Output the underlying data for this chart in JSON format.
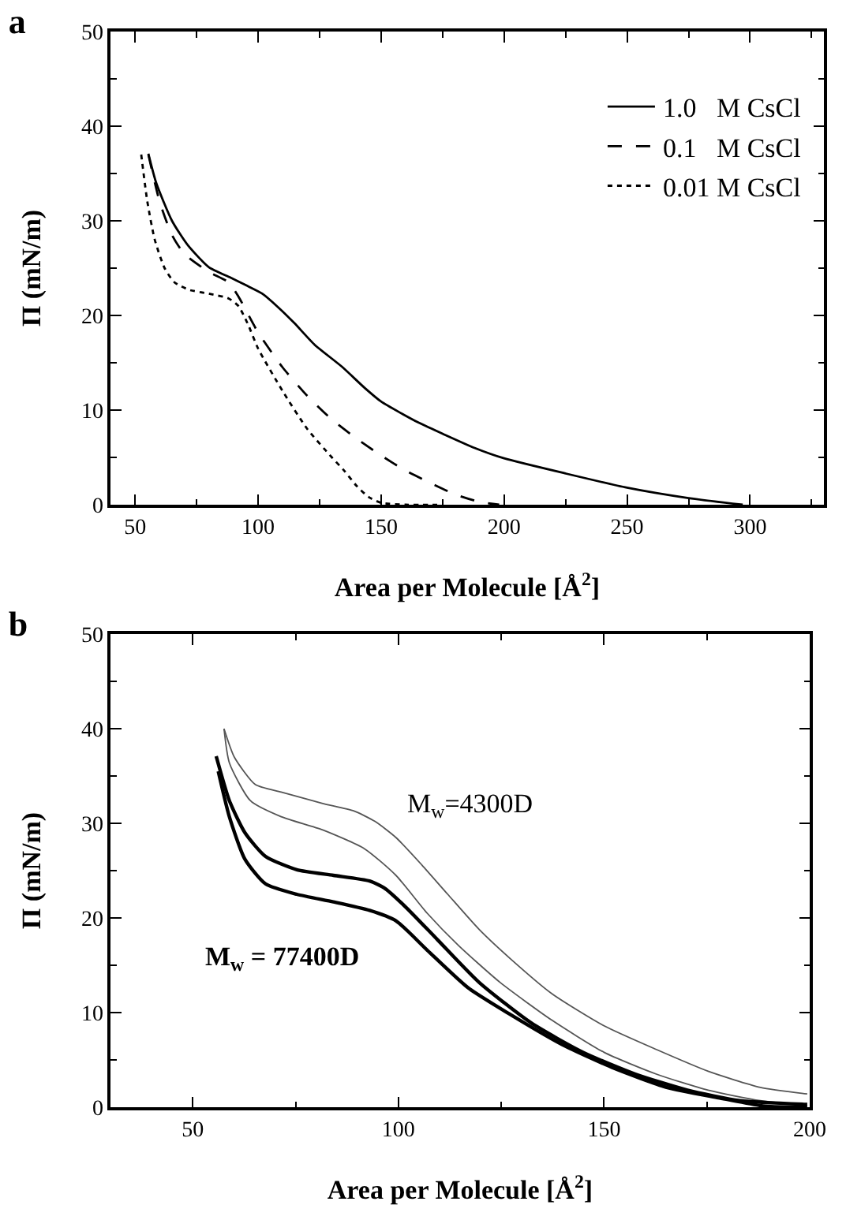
{
  "chart_data": [
    {
      "type": "line",
      "title": "a",
      "xlabel": "Area per Molecule [Å$^{2}$]",
      "ylabel": "Π (mN/m)",
      "xlim": [
        40,
        330
      ],
      "xticks": [
        50,
        100,
        150,
        200,
        250,
        300
      ],
      "ylim": [
        0,
        50
      ],
      "yticks": [
        0,
        10,
        20,
        30,
        40,
        50
      ],
      "grid": false,
      "legend": "top right",
      "series": [
        {
          "name": "1.0   M CsCl",
          "color": "#000000",
          "line_style": "solid",
          "x": [
            55.4,
            58.6,
            65,
            71.5,
            80,
            88.8,
            95,
            101.7,
            108,
            114.7,
            123,
            134,
            143.5,
            150,
            165,
            175,
            188,
            200,
            225,
            250,
            275,
            297
          ],
          "values": [
            37.1,
            34,
            30,
            27.4,
            25.1,
            24,
            23.2,
            22.3,
            20.9,
            19.2,
            16.9,
            14.6,
            12.3,
            10.9,
            8.7,
            7.5,
            6,
            4.9,
            3.3,
            1.8,
            0.7,
            0
          ]
        },
        {
          "name": "0.1   M CsCl",
          "color": "#000000",
          "line_style": "dashed",
          "x": [
            55.4,
            60,
            65,
            70,
            80,
            88,
            92,
            100,
            110,
            120,
            130,
            140,
            150,
            160,
            170,
            180,
            190,
            198
          ],
          "values": [
            37,
            32,
            28.5,
            26.5,
            24.6,
            23.5,
            22,
            18.2,
            14.5,
            11.5,
            9,
            7,
            5.2,
            3.6,
            2.3,
            1.1,
            0.3,
            0
          ]
        },
        {
          "name": "0.01 M CsCl",
          "color": "#000000",
          "line_style": "dotted",
          "x": [
            52.5,
            55,
            58,
            62,
            66,
            72,
            80,
            88,
            92,
            96,
            100,
            110,
            120,
            130,
            135,
            140,
            145,
            150,
            160,
            175
          ],
          "values": [
            37,
            32,
            28,
            25,
            23.5,
            22.7,
            22.3,
            21.8,
            21,
            19,
            16.5,
            12,
            8,
            5,
            3.6,
            2,
            0.8,
            0.2,
            0,
            0
          ]
        }
      ]
    },
    {
      "type": "line",
      "title": "b",
      "xlabel": "Area per Molecule [Å$^{2}$]",
      "ylabel": "Π (mN/m)",
      "xlim": [
        30,
        200
      ],
      "xticks": [
        50,
        100,
        150,
        200
      ],
      "ylim": [
        0,
        50
      ],
      "yticks": [
        0,
        10,
        20,
        30,
        40,
        50
      ],
      "grid": false,
      "legend": false,
      "annotations": [
        "M$_{w}$=4300D",
        "M$_{w}$ = 77400D"
      ],
      "series": [
        {
          "color": "#555555",
          "line_style": "solid",
          "x": [
            57.6,
            60.1,
            65.2,
            71.5,
            81.6,
            89.2,
            94.3,
            99.4,
            105.7,
            112,
            119.6,
            127.2,
            137.3,
            150,
            162.7,
            175.3,
            188,
            199.4
          ],
          "values": [
            40,
            37,
            34.1,
            33.3,
            32.1,
            31.3,
            30.2,
            28.5,
            25.6,
            22.5,
            18.8,
            15.7,
            12,
            8.6,
            6.1,
            3.8,
            2.1,
            1.4
          ]
        },
        {
          "color": "#555555",
          "line_style": "solid",
          "x": [
            57.6,
            58.9,
            64,
            71.5,
            81.6,
            91.8,
            99.4,
            107,
            114.6,
            124.7,
            137.3,
            150,
            162.7,
            175.3,
            188,
            199.4
          ],
          "values": [
            40,
            36.4,
            32.4,
            30.7,
            29.3,
            27.3,
            24.5,
            20.5,
            17.1,
            13.2,
            9.2,
            5.8,
            3.5,
            1.8,
            0.7,
            0.2
          ]
        },
        {
          "color": "#000000",
          "line_style": "solid",
          "x": [
            55.7,
            58.9,
            62.7,
            67.7,
            75.3,
            84.2,
            93,
            96.8,
            101.9,
            109.5,
            119.6,
            132.3,
            144.9,
            157.6,
            170.3,
            183,
            199.4
          ],
          "values": [
            37.1,
            32.4,
            29,
            26.5,
            25.1,
            24.5,
            23.9,
            23.1,
            21.1,
            17.7,
            13.2,
            8.9,
            5.8,
            3.5,
            1.8,
            0.7,
            0.3
          ]
        },
        {
          "color": "#000000",
          "line_style": "solid",
          "x": [
            56.2,
            58.9,
            62.7,
            67.7,
            75.3,
            84.2,
            93,
            99.4,
            107,
            117,
            127.2,
            139.9,
            152.5,
            165.2,
            177.8,
            189.2,
            199.4
          ],
          "values": [
            35.5,
            30.7,
            26.2,
            23.6,
            22.5,
            21.7,
            20.8,
            19.7,
            16.6,
            12.6,
            9.8,
            6.6,
            4.1,
            2.1,
            1,
            0.1,
            0
          ]
        }
      ]
    }
  ]
}
